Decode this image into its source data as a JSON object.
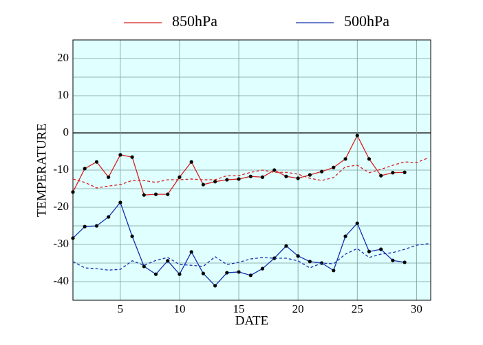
{
  "chart_data": {
    "type": "line",
    "xlabel": "DATE",
    "ylabel": "TEMPERATURE",
    "x": [
      1,
      2,
      3,
      4,
      5,
      6,
      7,
      8,
      9,
      10,
      11,
      12,
      13,
      14,
      15,
      16,
      17,
      18,
      19,
      20,
      21,
      22,
      23,
      24,
      25,
      26,
      27,
      28,
      29,
      30,
      31
    ],
    "series": [
      {
        "name": "850hPa",
        "color": "#d62020",
        "style": "solid",
        "markers": true,
        "values": [
          -15.9,
          -9.6,
          -7.8,
          -11.9,
          -5.9,
          -6.5,
          -16.7,
          -16.5,
          -16.5,
          -11.9,
          -7.8,
          -13.9,
          -13.1,
          -12.6,
          -12.4,
          -11.7,
          -11.9,
          -10,
          -11.7,
          -12.2,
          -11.3,
          -10.4,
          -9.3,
          -7.0,
          -0.7,
          -7.0,
          -11.5,
          -10.7,
          -10.6,
          null,
          null
        ]
      },
      {
        "name": "500hPa",
        "color": "#1030b0",
        "style": "solid",
        "markers": true,
        "values": [
          -28.3,
          -25.2,
          -25,
          -22.6,
          -18.7,
          -27.8,
          -35.9,
          -38,
          -34.4,
          -38,
          -32,
          -37.8,
          -41.1,
          -37.6,
          -37.4,
          -38.3,
          -36.5,
          -33.7,
          -30.4,
          -33.1,
          -34.6,
          -35,
          -37,
          -27.8,
          -24.3,
          -31.9,
          -31.3,
          -34.3,
          -34.8,
          null,
          null
        ]
      },
      {
        "color": "#d62020",
        "style": "dashed",
        "markers": false,
        "values": [
          -12.4,
          -13.3,
          -14.8,
          -14.3,
          -13.9,
          -12.8,
          -12.8,
          -13.3,
          -12.6,
          -12.6,
          -12.4,
          -12.6,
          -12.6,
          -11.5,
          -11.5,
          -10.6,
          -10,
          -10.6,
          -10.6,
          -11.1,
          -12.2,
          -12.8,
          -12,
          -9.1,
          -8.7,
          -10.7,
          -9.8,
          -8.7,
          -7.8,
          -8,
          -6.7
        ]
      },
      {
        "color": "#1030b0",
        "style": "dashed",
        "markers": false,
        "values": [
          -34.6,
          -36.3,
          -36.5,
          -36.9,
          -36.7,
          -34.4,
          -35.6,
          -34.3,
          -33.5,
          -35.4,
          -35.6,
          -35.9,
          -33.3,
          -35.4,
          -34.8,
          -33.9,
          -33.5,
          -33.7,
          -33.7,
          -34.4,
          -36.3,
          -35,
          -35.2,
          -32.6,
          -31.1,
          -33.5,
          -32.6,
          -32.2,
          -31.3,
          -30.2,
          -29.8
        ]
      }
    ],
    "xlim": [
      1,
      31.2
    ],
    "xticks": [
      5,
      10,
      15,
      20,
      25,
      30
    ],
    "ylim": [
      -45,
      25
    ],
    "yticks": [
      -40,
      -30,
      -20,
      -10,
      0,
      10,
      20
    ],
    "yminor": [
      -45,
      -35,
      -25,
      -15,
      -5,
      5,
      15,
      25
    ],
    "grid": true,
    "zero_line": true,
    "background": "#e0ffff",
    "legend": "top"
  }
}
